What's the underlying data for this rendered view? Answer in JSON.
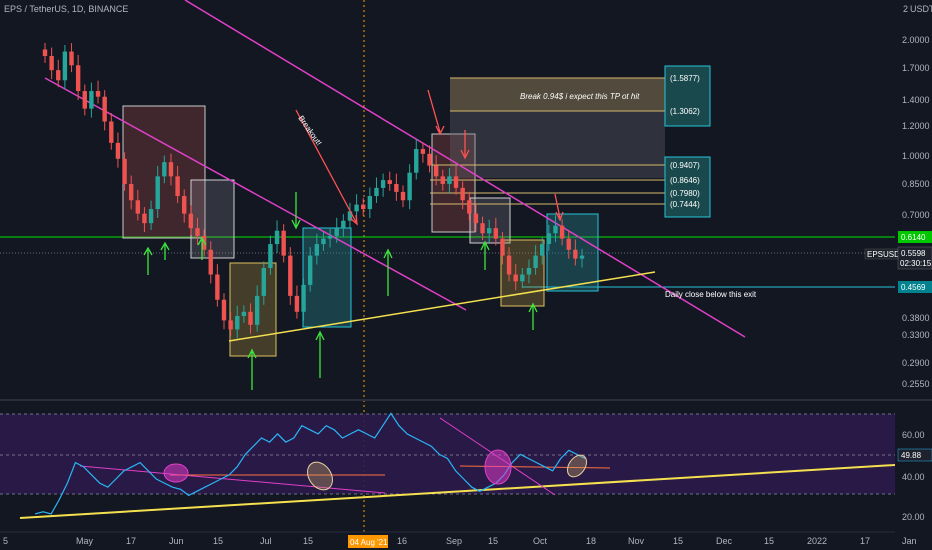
{
  "header": {
    "title": "EPS / TetherUS, 1D, BINANCE"
  },
  "price_axis": {
    "unit_label": "USDT",
    "top_tick": "2",
    "ticks": [
      "2.0000",
      "1.7000",
      "1.4000",
      "1.2000",
      "1.0000",
      "0.8500",
      "0.7000",
      "0.3800",
      "0.3300",
      "0.2900",
      "0.2550"
    ]
  },
  "symbol_label": "EPSUSDT",
  "price_tags": {
    "support": "0.6140",
    "last": "0.5598",
    "countdown": "02:30:15",
    "exit": "0.4569"
  },
  "tp_labels": [
    "(1.5877)",
    "(1.3062)",
    "(0.9407)",
    "(0.8646)",
    "(0.7980)",
    "(0.7444)"
  ],
  "annotations": {
    "breakout": "Breakout!",
    "tp_note": "Break 0.94$ i expect this TP ot hit",
    "exit_note": "Daily close below this exit"
  },
  "oscillator": {
    "ticks": [
      "60.00",
      "40.00",
      "20.00"
    ],
    "current": "49.88"
  },
  "time_axis": {
    "ticks": [
      "5",
      "May",
      "17",
      "Jun",
      "15",
      "Jul",
      "15",
      "Aug",
      "16",
      "Sep",
      "15",
      "Oct",
      "18",
      "Nov",
      "15",
      "Dec",
      "15",
      "2022",
      "17",
      "Jan"
    ],
    "crosshair": "04 Aug '21"
  },
  "colors": {
    "background": "#131722",
    "up": "#26a69a",
    "down": "#ef5350",
    "trendline": "#e040c8",
    "support_line": "#00e600",
    "rising_line": "#f5e050",
    "rsi_line": "#29b6f6",
    "osc_band": "#2c1a4a"
  },
  "chart_data": [
    {
      "type": "candlestick",
      "title": "EPS / TetherUS, 1D, BINANCE",
      "ylabel": "USDT",
      "y_scale": "log",
      "ylim": [
        0.23,
        2.05
      ],
      "x_range": [
        "Apr 2021",
        "Jan 2022"
      ],
      "close_series": [
        1.85,
        1.7,
        1.6,
        1.9,
        1.75,
        1.5,
        1.35,
        1.5,
        1.45,
        1.25,
        1.1,
        1.0,
        0.86,
        0.78,
        0.72,
        0.68,
        0.74,
        0.9,
        0.98,
        0.9,
        0.8,
        0.72,
        0.66,
        0.63,
        0.58,
        0.5,
        0.43,
        0.38,
        0.36,
        0.39,
        0.4,
        0.37,
        0.44,
        0.52,
        0.6,
        0.65,
        0.56,
        0.44,
        0.4,
        0.47,
        0.56,
        0.6,
        0.62,
        0.63,
        0.66,
        0.69,
        0.73,
        0.76,
        0.74,
        0.8,
        0.84,
        0.88,
        0.86,
        0.82,
        0.78,
        0.92,
        1.06,
        1.03,
        0.96,
        0.9,
        0.86,
        0.9,
        0.84,
        0.78,
        0.72,
        0.68,
        0.64,
        0.66,
        0.62,
        0.56,
        0.5,
        0.48,
        0.5,
        0.52,
        0.56,
        0.6,
        0.64,
        0.67,
        0.62,
        0.58,
        0.55,
        0.56
      ],
      "levels": {
        "support": 0.614,
        "exit": 0.4569,
        "take_profit": [
          1.5877,
          1.3062,
          0.9407,
          0.8646,
          0.798,
          0.7444
        ]
      },
      "annotations": [
        "Breakout!",
        "Break 0.94$ i expect this TP ot hit",
        "Daily close below this exit"
      ],
      "grid": false
    },
    {
      "type": "line",
      "title": "",
      "ylim": [
        15,
        75
      ],
      "current_value": 49.88,
      "bands": [
        30,
        70
      ],
      "values": [
        23,
        24,
        23,
        30,
        38,
        48,
        46,
        42,
        38,
        36,
        40,
        44,
        46,
        48,
        44,
        40,
        38,
        36,
        35,
        32,
        34,
        36,
        38,
        40,
        42,
        46,
        52,
        56,
        60,
        58,
        62,
        58,
        60,
        66,
        64,
        62,
        66,
        64,
        60,
        62,
        64,
        62,
        60,
        66,
        72,
        66,
        62,
        60,
        58,
        56,
        52,
        50,
        44,
        40,
        36,
        34,
        36,
        38,
        42,
        48,
        52,
        50,
        48,
        46,
        44,
        50,
        54,
        52,
        50
      ]
    }
  ]
}
